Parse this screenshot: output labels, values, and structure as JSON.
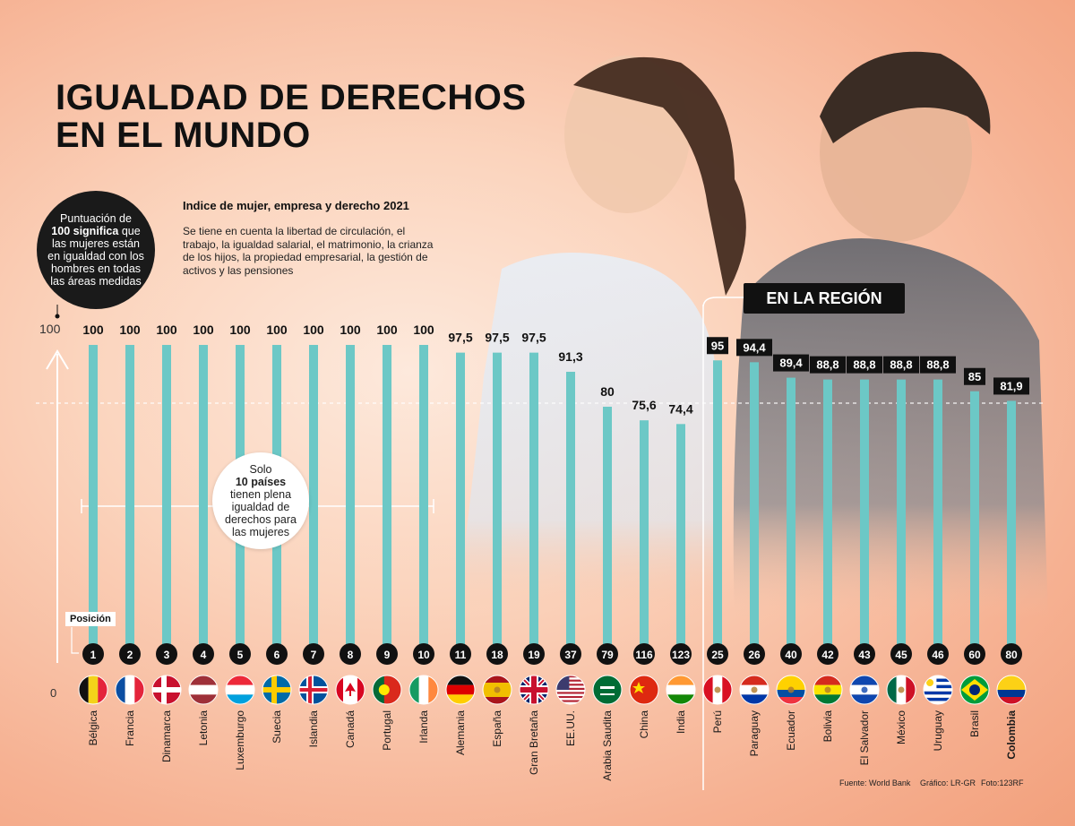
{
  "header": {
    "title_line1": "IGUALDAD DE DERECHOS",
    "title_line2": "EN EL MUNDO"
  },
  "legend_bubble": {
    "line1": "Puntuación de",
    "line2_bold": "100 significa",
    "line2_rest": " que",
    "line3": "las mujeres están",
    "line4": "en igualdad con los",
    "line5": "hombres en todas",
    "line6": "las áreas medidas"
  },
  "index_info": {
    "subtitle": "Indice de mujer, empresa y derecho 2021",
    "description": "Se tiene en cuenta la libertad de circulación, el trabajo, la igualdad salarial, el matrimonio, la crianza de los hijos, la propiedad empresarial, la gestión de activos y las pensiones"
  },
  "note": {
    "line1": "Solo",
    "line2_bold": "10 países",
    "line3": "tienen plena",
    "line4": "igualdad de",
    "line5": "derechos para",
    "line6": "las mujeres"
  },
  "region_label": "EN LA REGIÓN",
  "position_label": "Posición",
  "footer": {
    "source": "Fuente: World Bank",
    "graphic": "Gráfico: LR-GR",
    "photo": "Foto:123RF"
  },
  "colors": {
    "bar": "#6cc8c6",
    "label_box": "#111111",
    "rank_circle": "#111111"
  },
  "chart_data": {
    "type": "bar",
    "title": "Indice de mujer, empresa y derecho 2021",
    "ylim": [
      0,
      100
    ],
    "y_tick_labels": [
      "100",
      "0"
    ],
    "categories": [
      "Bélgica",
      "Francia",
      "Dinamarca",
      "Letonia",
      "Luxemburgo",
      "Suecia",
      "Islandia",
      "Canadá",
      "Portugal",
      "Irlanda",
      "Alemania",
      "España",
      "Gran Bretaña",
      "EE.UU.",
      "Arabia Saudita",
      "China",
      "India",
      "Perú",
      "Paraguay",
      "Ecuador",
      "Bolivia",
      "El Salvador",
      "México",
      "Uruguay",
      "Brasil",
      "Colombia"
    ],
    "value_labels": [
      "100",
      "100",
      "100",
      "100",
      "100",
      "100",
      "100",
      "100",
      "100",
      "100",
      "97,5",
      "97,5",
      "97,5",
      "91,3",
      "80",
      "75,6",
      "74,4",
      "95",
      "94,4",
      "89,4",
      "88,8",
      "88,8",
      "88,8",
      "88,8",
      "85",
      "81,9"
    ],
    "values": [
      100,
      100,
      100,
      100,
      100,
      100,
      100,
      100,
      100,
      100,
      97.5,
      97.5,
      97.5,
      91.3,
      80,
      75.6,
      74.4,
      95,
      94.4,
      89.4,
      88.8,
      88.8,
      88.8,
      88.8,
      85,
      81.9
    ],
    "positions": [
      1,
      2,
      3,
      4,
      5,
      6,
      7,
      8,
      9,
      10,
      11,
      18,
      19,
      37,
      79,
      116,
      123,
      25,
      26,
      40,
      42,
      43,
      45,
      46,
      60,
      80
    ],
    "region_start_index": 17,
    "boxed_labels_from_index": 17,
    "highlight_category": "Colombia",
    "flag_icons": [
      "belgium-flag",
      "france-flag",
      "denmark-flag",
      "latvia-flag",
      "luxembourg-flag",
      "sweden-flag",
      "iceland-flag",
      "canada-flag",
      "portugal-flag",
      "ireland-flag",
      "germany-flag",
      "spain-flag",
      "uk-flag",
      "usa-flag",
      "saudi-arabia-flag",
      "china-flag",
      "india-flag",
      "peru-flag",
      "paraguay-flag",
      "ecuador-flag",
      "bolivia-flag",
      "el-salvador-flag",
      "mexico-flag",
      "uruguay-flag",
      "brazil-flag",
      "colombia-flag"
    ]
  }
}
